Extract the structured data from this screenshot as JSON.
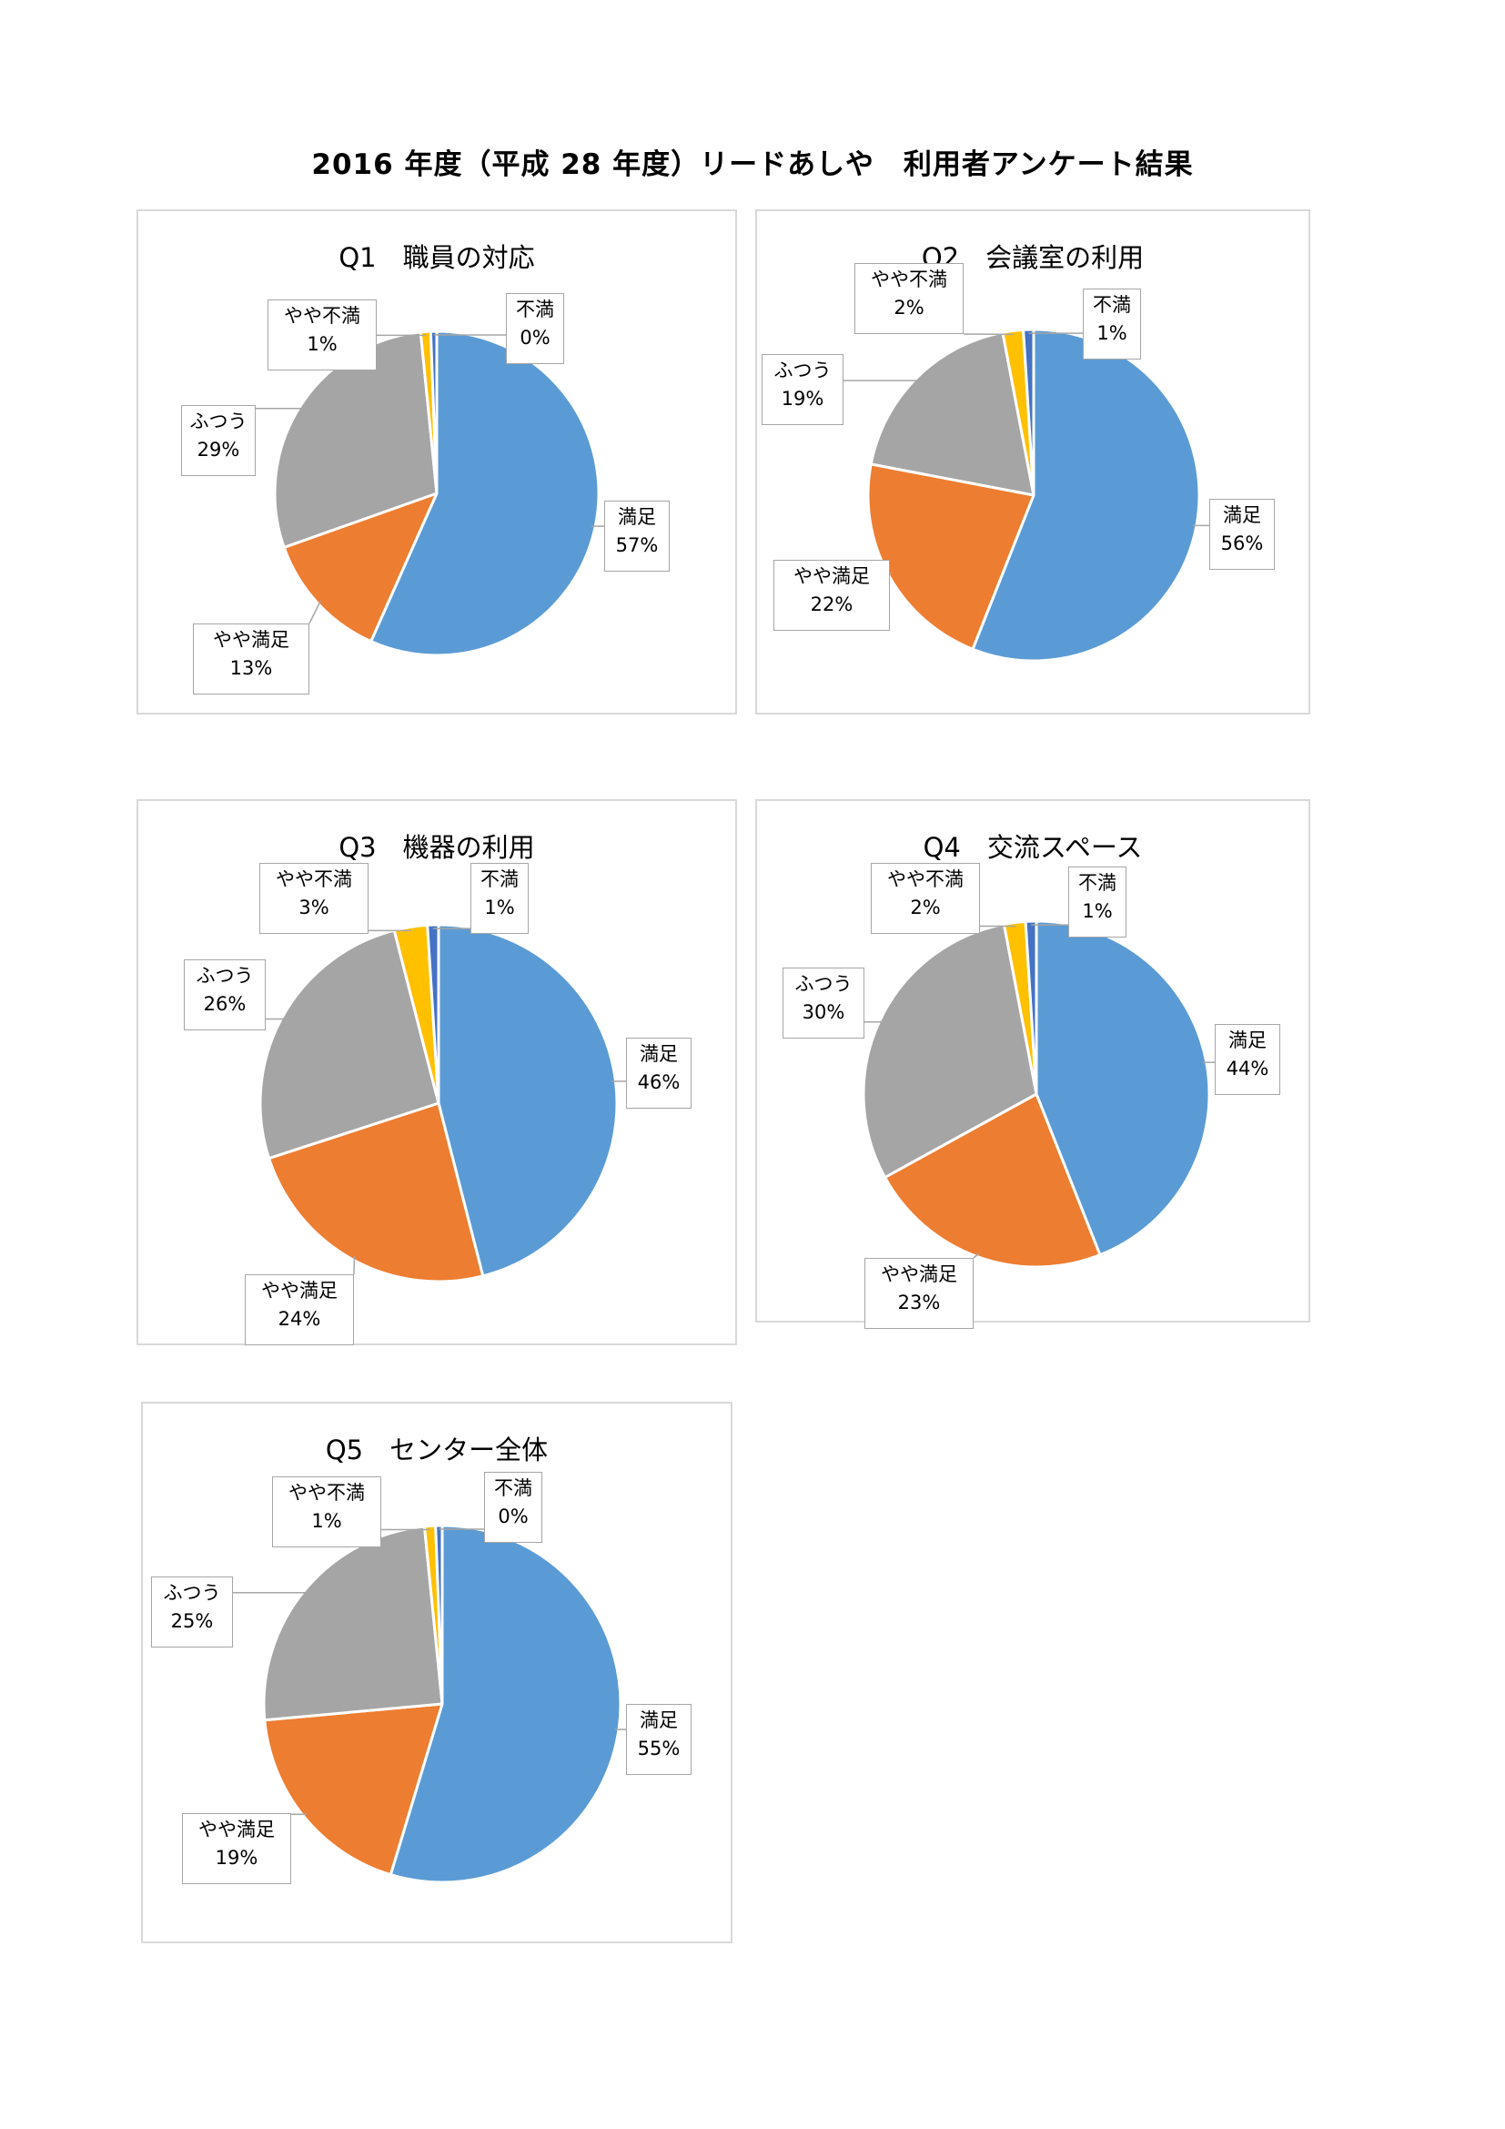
{
  "page": {
    "title": "2016 年度（平成 28 年度）リードあしや　利用者アンケート結果"
  },
  "colors": {
    "満足": "#5b9bd5",
    "やや満足": "#ed7d31",
    "ふつう": "#a5a5a5",
    "やや不満": "#ffc000",
    "不満": "#4472c4"
  },
  "chart_data": [
    {
      "type": "pie",
      "title": "Q1　職員の対応",
      "categories": [
        "満足",
        "やや満足",
        "ふつう",
        "やや不満",
        "不満"
      ],
      "values": [
        57,
        13,
        29,
        1,
        0
      ],
      "labels": [
        "57%",
        "13%",
        "29%",
        "1%",
        "0%"
      ]
    },
    {
      "type": "pie",
      "title": "Q2　会議室の利用",
      "categories": [
        "満足",
        "やや満足",
        "ふつう",
        "やや不満",
        "不満"
      ],
      "values": [
        56,
        22,
        19,
        2,
        1
      ],
      "labels": [
        "56%",
        "22%",
        "19%",
        "2%",
        "1%"
      ]
    },
    {
      "type": "pie",
      "title": "Q3　機器の利用",
      "categories": [
        "満足",
        "やや満足",
        "ふつう",
        "やや不満",
        "不満"
      ],
      "values": [
        46,
        24,
        26,
        3,
        1
      ],
      "labels": [
        "46%",
        "24%",
        "26%",
        "3%",
        "1%"
      ]
    },
    {
      "type": "pie",
      "title": "Q4　交流スペース",
      "categories": [
        "満足",
        "やや満足",
        "ふつう",
        "やや不満",
        "不満"
      ],
      "values": [
        44,
        23,
        30,
        2,
        1
      ],
      "labels": [
        "44%",
        "23%",
        "30%",
        "2%",
        "1%"
      ]
    },
    {
      "type": "pie",
      "title": "Q5　センター全体",
      "categories": [
        "満足",
        "やや満足",
        "ふつう",
        "やや不満",
        "不満"
      ],
      "values": [
        55,
        19,
        25,
        1,
        0
      ],
      "labels": [
        "55%",
        "19%",
        "25%",
        "1%",
        "0%"
      ]
    }
  ]
}
